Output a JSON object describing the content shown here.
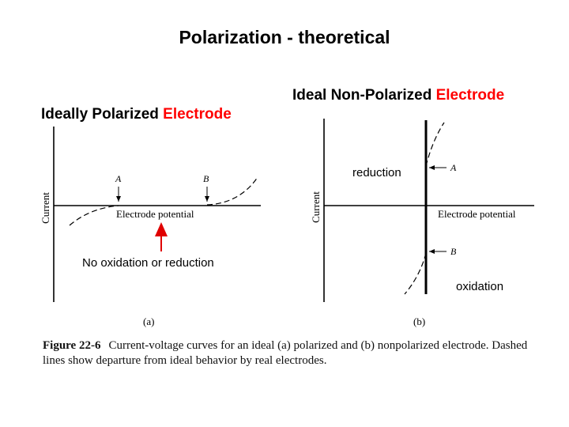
{
  "title": "Polarization - theoretical",
  "headings": {
    "left": {
      "text": "Ideally Polarized ",
      "accent": "Electrode"
    },
    "right": {
      "text": "Ideal Non-Polarized ",
      "accent": "Electrode"
    }
  },
  "panel_a": {
    "y_axis_label": "Current",
    "x_axis_label": "Electrode potential",
    "marker_a": "A",
    "marker_b": "B",
    "panel_label": "(a)"
  },
  "panel_b": {
    "y_axis_label": "Current",
    "x_axis_label": "Electrode potential",
    "marker_a": "A",
    "marker_b": "B",
    "panel_label": "(b)"
  },
  "annotations": {
    "no_reaction": "No oxidation or reduction",
    "reduction": "reduction",
    "oxidation": "oxidation"
  },
  "caption": {
    "label": "Figure 22-6",
    "text": "Current-voltage curves for an ideal (a) polarized and (b) nonpolarized electrode. Dashed lines show departure from ideal behavior by real electrodes."
  },
  "colors": {
    "accent": "#ff0000",
    "arrow": "#e00000",
    "ink": "#000000"
  }
}
